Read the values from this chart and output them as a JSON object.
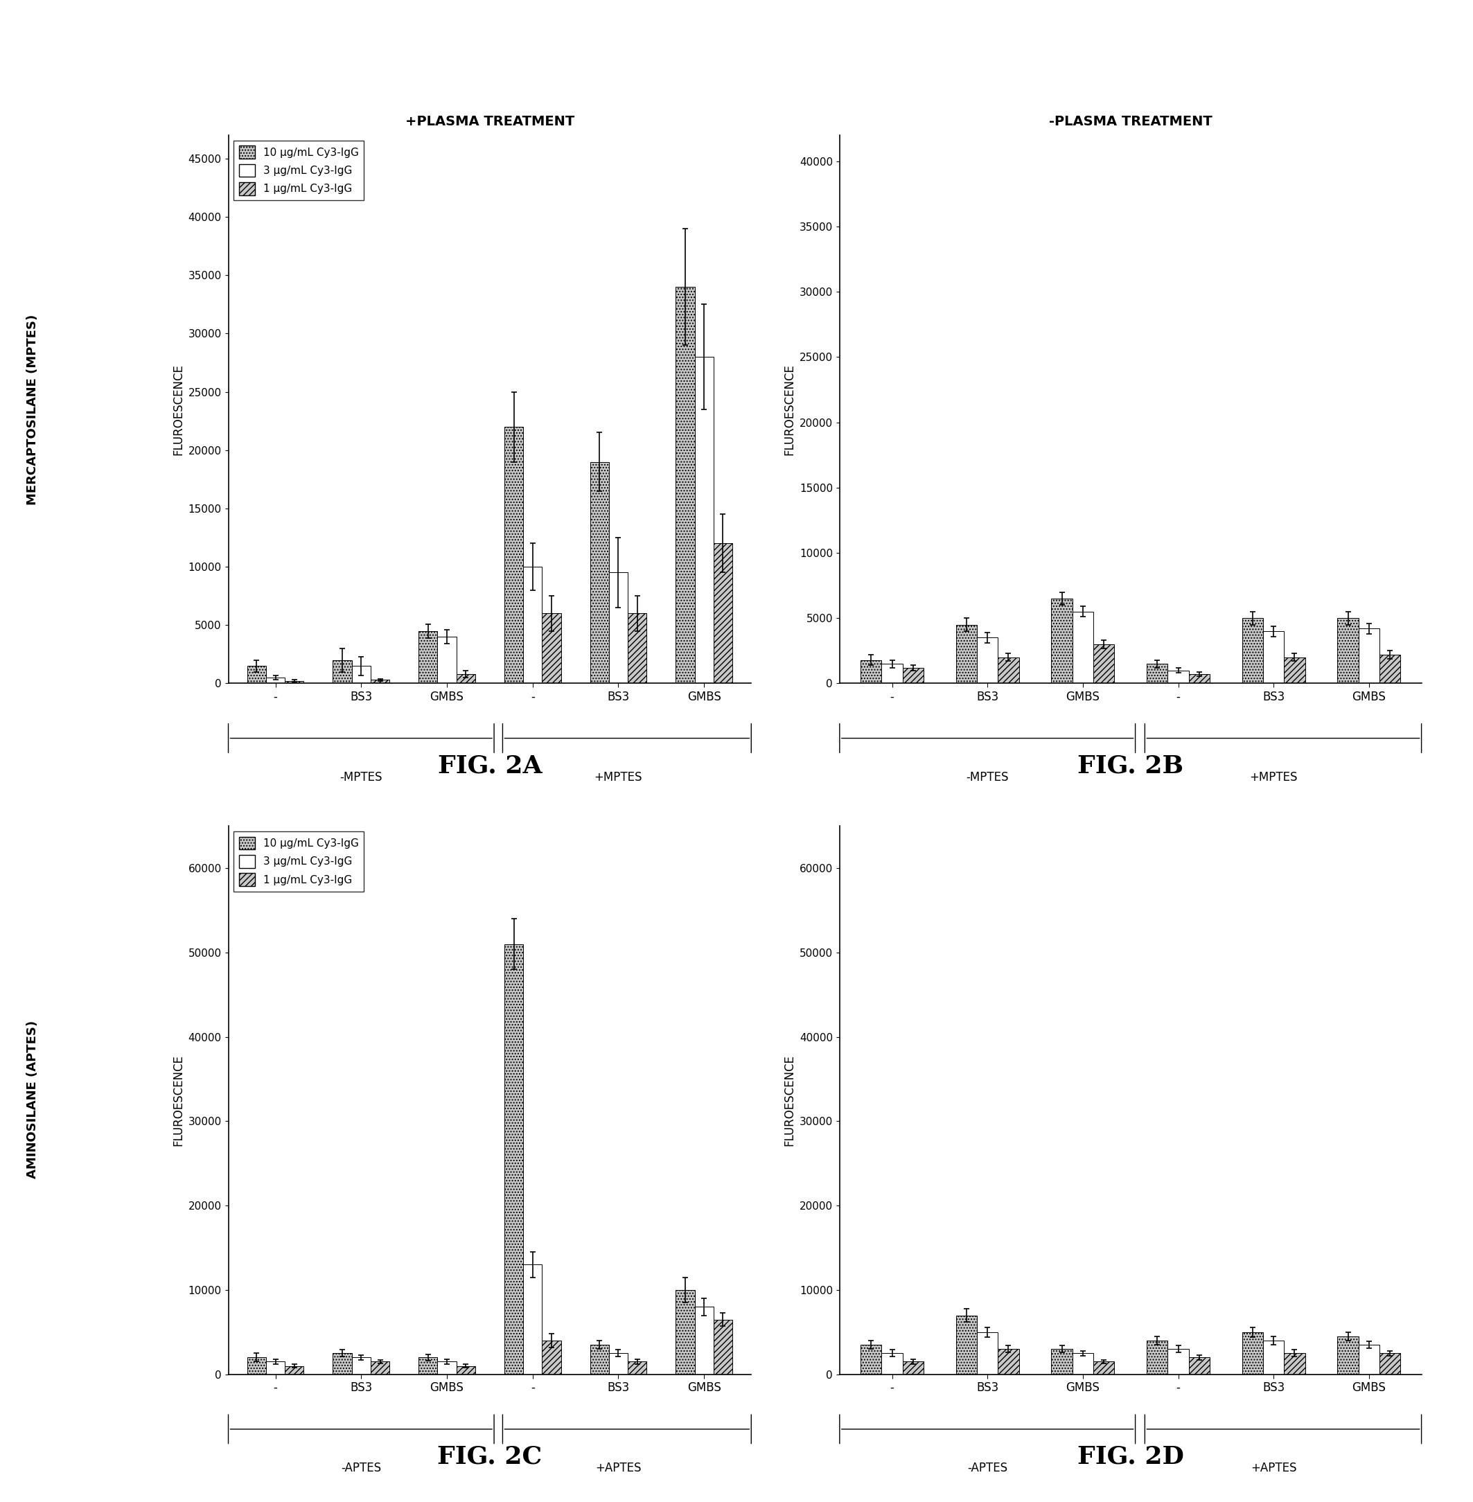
{
  "fig2A": {
    "title": "+PLASMA TREATMENT",
    "ylabel": "FLUROESCENCE",
    "row_label": "MERCAPTOSILANE (MPTES)",
    "ylim": [
      0,
      47000
    ],
    "yticks": [
      0,
      5000,
      10000,
      15000,
      20000,
      25000,
      30000,
      35000,
      40000,
      45000
    ],
    "group_ticks": [
      "-",
      "BS3",
      "GMBS",
      "-",
      "BS3",
      "GMBS"
    ],
    "section_labels": [
      "-MPTES",
      "+MPTES"
    ],
    "data_10": [
      1500,
      2000,
      4500,
      22000,
      19000,
      34000
    ],
    "data_3": [
      500,
      1500,
      4000,
      10000,
      9500,
      28000
    ],
    "data_1": [
      200,
      300,
      800,
      6000,
      6000,
      12000
    ],
    "err_10": [
      500,
      1000,
      600,
      3000,
      2500,
      5000
    ],
    "err_3": [
      200,
      800,
      600,
      2000,
      3000,
      4500
    ],
    "err_1": [
      100,
      100,
      300,
      1500,
      1500,
      2500
    ]
  },
  "fig2B": {
    "title": "-PLASMA TREATMENT",
    "ylabel": "FLUROESCENCE",
    "row_label": "",
    "ylim": [
      0,
      42000
    ],
    "yticks": [
      0,
      5000,
      10000,
      15000,
      20000,
      25000,
      30000,
      35000,
      40000
    ],
    "group_ticks": [
      "-",
      "BS3",
      "GMBS",
      "-",
      "BS3",
      "GMBS"
    ],
    "section_labels": [
      "-MPTES",
      "+MPTES"
    ],
    "data_10": [
      1800,
      4500,
      6500,
      1500,
      5000,
      5000
    ],
    "data_3": [
      1500,
      3500,
      5500,
      1000,
      4000,
      4200
    ],
    "data_1": [
      1200,
      2000,
      3000,
      700,
      2000,
      2200
    ],
    "err_10": [
      400,
      500,
      500,
      300,
      500,
      500
    ],
    "err_3": [
      300,
      400,
      400,
      200,
      400,
      400
    ],
    "err_1": [
      200,
      300,
      300,
      150,
      300,
      300
    ]
  },
  "fig2C": {
    "title": "",
    "ylabel": "FLUROESCENCE",
    "row_label": "AMINOSILANE (APTES)",
    "ylim": [
      0,
      65000
    ],
    "yticks": [
      0,
      10000,
      20000,
      30000,
      40000,
      50000,
      60000
    ],
    "group_ticks": [
      "-",
      "BS3",
      "GMBS",
      "-",
      "BS3",
      "GMBS"
    ],
    "section_labels": [
      "-APTES",
      "+APTES"
    ],
    "data_10": [
      2000,
      2500,
      2000,
      51000,
      3500,
      10000
    ],
    "data_3": [
      1500,
      2000,
      1500,
      13000,
      2500,
      8000
    ],
    "data_1": [
      1000,
      1500,
      1000,
      4000,
      1500,
      6500
    ],
    "err_10": [
      500,
      400,
      400,
      3000,
      500,
      1500
    ],
    "err_3": [
      300,
      300,
      300,
      1500,
      400,
      1000
    ],
    "err_1": [
      200,
      200,
      200,
      800,
      300,
      800
    ]
  },
  "fig2D": {
    "title": "",
    "ylabel": "FLUROESCENCE",
    "row_label": "",
    "ylim": [
      0,
      65000
    ],
    "yticks": [
      0,
      10000,
      20000,
      30000,
      40000,
      50000,
      60000
    ],
    "group_ticks": [
      "-",
      "BS3",
      "GMBS",
      "-",
      "BS3",
      "GMBS"
    ],
    "section_labels": [
      "-APTES",
      "+APTES"
    ],
    "data_10": [
      3500,
      7000,
      3000,
      4000,
      5000,
      4500
    ],
    "data_3": [
      2500,
      5000,
      2500,
      3000,
      4000,
      3500
    ],
    "data_1": [
      1500,
      3000,
      1500,
      2000,
      2500,
      2500
    ],
    "err_10": [
      500,
      800,
      400,
      500,
      600,
      500
    ],
    "err_3": [
      400,
      600,
      300,
      400,
      500,
      400
    ],
    "err_1": [
      300,
      400,
      200,
      300,
      400,
      300
    ]
  },
  "legend_labels": [
    "10 μg/mL Cy3-IgG",
    "3 μg/mL Cy3-IgG",
    "1 μg/mL Cy3-IgG"
  ],
  "bar_colors": [
    "#c8c8c8",
    "#ffffff",
    "#c8c8c8"
  ],
  "bar_hatches": [
    "....",
    "",
    "////"
  ],
  "fig_labels": [
    "FIG. 2A",
    "FIG. 2B",
    "FIG. 2C",
    "FIG. 2D"
  ]
}
